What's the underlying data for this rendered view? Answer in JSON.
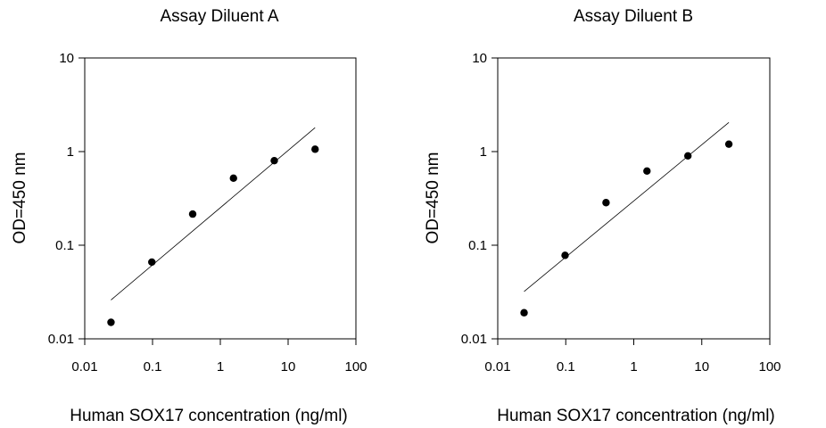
{
  "chart_data": [
    {
      "type": "scatter",
      "title": "Assay Diluent A",
      "xlabel": "Human SOX17 concentration (ng/ml)",
      "ylabel": "OD=450 nm",
      "x_scale": "log",
      "y_scale": "log",
      "xlim": [
        0.01,
        100
      ],
      "ylim": [
        0.01,
        10
      ],
      "x_ticks": [
        "0.01",
        "0.1",
        "1",
        "10",
        "100"
      ],
      "y_ticks": [
        "0.01",
        "0.1",
        "1",
        "10"
      ],
      "grid": false,
      "series": [
        {
          "x": [
            0.0244,
            0.0977,
            0.391,
            1.5625,
            6.25,
            25
          ],
          "y": [
            0.015,
            0.066,
            0.215,
            0.52,
            0.8,
            1.06
          ]
        }
      ],
      "fit_line": {
        "x": [
          0.0244,
          25
        ],
        "y": [
          0.026,
          1.8
        ]
      }
    },
    {
      "type": "scatter",
      "title": "Assay Diluent B",
      "xlabel": "Human SOX17 concentration (ng/ml)",
      "ylabel": "OD=450 nm",
      "x_scale": "log",
      "y_scale": "log",
      "xlim": [
        0.01,
        100
      ],
      "ylim": [
        0.01,
        10
      ],
      "x_ticks": [
        "0.01",
        "0.1",
        "1",
        "10",
        "100"
      ],
      "y_ticks": [
        "0.01",
        "0.1",
        "1",
        "10"
      ],
      "grid": false,
      "series": [
        {
          "x": [
            0.0244,
            0.0977,
            0.391,
            1.5625,
            6.25,
            25
          ],
          "y": [
            0.019,
            0.078,
            0.285,
            0.62,
            0.9,
            1.2
          ]
        }
      ],
      "fit_line": {
        "x": [
          0.0244,
          25
        ],
        "y": [
          0.032,
          2.05
        ]
      }
    }
  ]
}
